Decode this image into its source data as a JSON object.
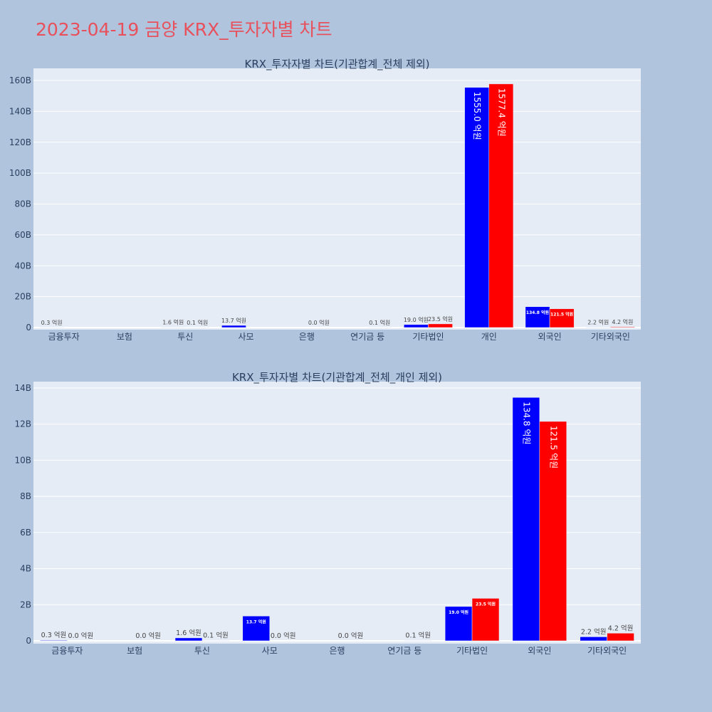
{
  "page": {
    "title": "2023-04-19 금양 KRX_투자자별 차트",
    "colors": {
      "background": "#b0c4de",
      "plot_bg": "#e5ecf6",
      "title": "#e8505b",
      "series_a": "#0000ff",
      "series_b": "#ff0000",
      "text": "#2a3f5f"
    }
  },
  "chart_data": [
    {
      "type": "bar",
      "title": "KRX_투자자별 차트(기관합계_전체 제외)",
      "categories": [
        "금융투자",
        "보험",
        "투신",
        "사모",
        "은행",
        "연기금 등",
        "기타법인",
        "개인",
        "외국인",
        "기타외국인"
      ],
      "series": [
        {
          "color": "#0000ff",
          "values": [
            0.03,
            null,
            0.16,
            1.37,
            null,
            null,
            1.9,
            155.5,
            13.48,
            0.22
          ],
          "labels": [
            "0.3 억원",
            "",
            "1.6 억원",
            "13.7 억원",
            "",
            "",
            "19.0 억원",
            "1555.0 억원",
            "134.8 억원",
            "2.2 억원"
          ]
        },
        {
          "color": "#ff0000",
          "values": [
            null,
            null,
            0.01,
            null,
            0.0,
            0.01,
            2.35,
            157.74,
            12.15,
            0.42
          ],
          "labels": [
            "",
            "",
            "0.1 억원",
            "",
            "0.0 억원",
            "0.1 억원",
            "23.5 억원",
            "1577.4 억원",
            "121.5 억원",
            "4.2 억원"
          ]
        }
      ],
      "yticks": [
        "0",
        "20B",
        "40B",
        "60B",
        "80B",
        "100B",
        "120B",
        "140B",
        "160B"
      ],
      "ylim": [
        0,
        160
      ],
      "grid": true
    },
    {
      "type": "bar",
      "title": "KRX_투자자별 차트(기관합계_전체_개인 제외)",
      "categories": [
        "금융투자",
        "보험",
        "투신",
        "사모",
        "은행",
        "연기금 등",
        "기타법인",
        "외국인",
        "기타외국인"
      ],
      "series": [
        {
          "color": "#0000ff",
          "values": [
            0.03,
            null,
            0.16,
            1.37,
            null,
            null,
            1.9,
            13.48,
            0.22
          ],
          "labels": [
            "0.3 억원",
            "",
            "1.6 억원",
            "13.7 억원",
            "",
            "",
            "19.0 억원",
            "134.8 억원",
            "2.2 억원"
          ]
        },
        {
          "color": "#ff0000",
          "values": [
            0.0,
            0.0,
            0.01,
            0.0,
            0.0,
            0.01,
            2.35,
            12.15,
            0.42
          ],
          "labels": [
            "0.0 억원",
            "0.0 억원",
            "0.1 억원",
            "0.0 억원",
            "0.0 억원",
            "0.1 억원",
            "23.5 억원",
            "121.5 억원",
            "4.2 억원"
          ]
        }
      ],
      "yticks": [
        "0",
        "2B",
        "4B",
        "6B",
        "8B",
        "10B",
        "12B",
        "14B"
      ],
      "ylim": [
        0,
        14
      ],
      "grid": true
    }
  ]
}
